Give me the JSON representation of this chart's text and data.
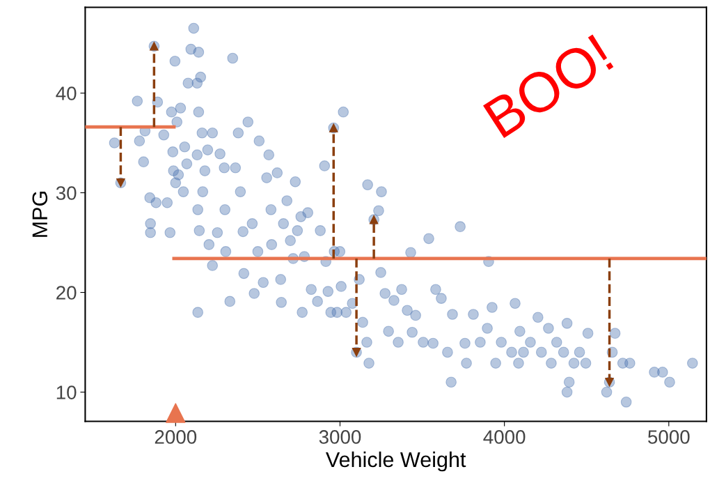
{
  "chart_data": {
    "type": "scatter",
    "xlabel": "Vehicle Weight",
    "ylabel": "MPG",
    "xlim": [
      1450,
      5229
    ],
    "ylim": [
      7.06,
      48.6
    ],
    "xticks": [
      2000,
      3000,
      4000,
      5000
    ],
    "yticks": [
      10,
      20,
      30,
      40
    ],
    "grid": false,
    "annotations": [
      "BOO!"
    ],
    "series": [
      {
        "marker": "circle",
        "color": "#4c72b0",
        "x": [
          1628,
          1666,
          1767,
          1780,
          1814,
          1805,
          1843,
          1847,
          1847,
          1869,
          1890,
          1881,
          1928,
          1949,
          1966,
          1975,
          1983,
          1987,
          1996,
          2000,
          2008,
          2017,
          2030,
          2047,
          2055,
          2076,
          2068,
          2093,
          2110,
          2131,
          2140,
          2152,
          2140,
          2131,
          2135,
          2144,
          2135,
          2161,
          2178,
          2165,
          2195,
          2203,
          2224,
          2224,
          2254,
          2270,
          2300,
          2296,
          2305,
          2330,
          2347,
          2364,
          2381,
          2394,
          2410,
          2415,
          2440,
          2466,
          2478,
          2500,
          2508,
          2533,
          2554,
          2567,
          2580,
          2584,
          2618,
          2639,
          2643,
          2656,
          2677,
          2698,
          2715,
          2728,
          2741,
          2762,
          2770,
          2783,
          2804,
          2825,
          2863,
          2880,
          2906,
          2914,
          2927,
          2944,
          2961,
          2965,
          2982,
          2999,
          3007,
          3020,
          3037,
          3075,
          3100,
          3117,
          3138,
          3168,
          3176,
          3163,
          3206,
          3235,
          3252,
          3248,
          3274,
          3295,
          3328,
          3354,
          3375,
          3409,
          3430,
          3439,
          3460,
          3506,
          3540,
          3566,
          3582,
          3616,
          3654,
          3676,
          3684,
          3731,
          3760,
          3769,
          3811,
          3853,
          3896,
          3904,
          3925,
          3947,
          3981,
          4044,
          4065,
          4086,
          4094,
          4116,
          4158,
          4204,
          4225,
          4268,
          4285,
          4318,
          4360,
          4381,
          4394,
          4381,
          4423,
          4457,
          4495,
          4508,
          4639,
          4622,
          4656,
          4673,
          4720,
          4741,
          4763,
          4912,
          4962,
          5005,
          5144
        ],
        "values": [
          35.0,
          31.0,
          39.2,
          35.2,
          36.2,
          33.1,
          29.5,
          26.9,
          26.0,
          44.7,
          39.1,
          29.0,
          35.8,
          29.0,
          26.0,
          38.1,
          34.1,
          32.2,
          43.2,
          31.0,
          37.1,
          31.8,
          38.5,
          30.1,
          34.6,
          41.0,
          32.9,
          44.4,
          46.5,
          41.0,
          44.1,
          41.6,
          38.1,
          33.8,
          28.3,
          26.2,
          18.0,
          36.0,
          32.2,
          30.1,
          34.3,
          24.8,
          36.0,
          22.7,
          26.0,
          33.9,
          28.3,
          32.5,
          24.1,
          19.1,
          43.5,
          32.5,
          36.0,
          30.1,
          26.1,
          21.9,
          37.1,
          26.9,
          19.9,
          24.1,
          35.2,
          21.0,
          31.5,
          33.8,
          28.3,
          24.8,
          32.0,
          21.3,
          19.0,
          26.9,
          29.2,
          25.2,
          23.4,
          31.1,
          26.2,
          27.6,
          18.0,
          23.6,
          28.0,
          20.3,
          19.1,
          26.2,
          32.7,
          23.1,
          20.1,
          18.0,
          36.5,
          24.1,
          18.0,
          24.1,
          20.6,
          38.1,
          18.0,
          18.9,
          14.0,
          21.3,
          17.0,
          30.8,
          12.9,
          15.0,
          27.3,
          28.2,
          30.1,
          22.0,
          19.9,
          16.1,
          19.2,
          15.0,
          20.3,
          18.2,
          24.0,
          16.0,
          17.7,
          15.0,
          25.4,
          14.9,
          20.3,
          19.4,
          14.0,
          11.0,
          17.8,
          26.6,
          14.9,
          12.9,
          17.8,
          15.0,
          16.4,
          23.1,
          18.5,
          12.9,
          15.0,
          14.0,
          18.9,
          12.9,
          16.1,
          14.0,
          15.0,
          17.5,
          14.0,
          16.4,
          12.9,
          15.0,
          14.0,
          16.9,
          11.0,
          10.0,
          12.9,
          14.0,
          12.9,
          15.9,
          11.0,
          10.0,
          14.0,
          15.9,
          12.9,
          9.0,
          12.9,
          12.0,
          12.0,
          11.0,
          12.9
        ]
      },
      {
        "type": "line",
        "color": "#e8744f",
        "line_style": "solid",
        "x": [
          1450,
          1990
        ],
        "values": [
          36.6,
          36.6
        ]
      },
      {
        "type": "line",
        "color": "#e8744f",
        "line_style": "solid",
        "x": [
          1990,
          5229
        ],
        "values": [
          23.4,
          23.4
        ]
      },
      {
        "type": "line",
        "color": "#8b3f0f",
        "line_style": "dashed",
        "marker": "triangle",
        "x": [
          1666,
          1666
        ],
        "values": [
          36.6,
          31.0
        ]
      },
      {
        "type": "line",
        "color": "#8b3f0f",
        "line_style": "dashed",
        "marker": "triangle",
        "x": [
          1869,
          1869
        ],
        "values": [
          36.6,
          44.7
        ]
      },
      {
        "type": "line",
        "color": "#8b3f0f",
        "line_style": "dashed",
        "marker": "triangle",
        "x": [
          2961,
          2961
        ],
        "values": [
          23.4,
          36.5
        ]
      },
      {
        "type": "line",
        "color": "#8b3f0f",
        "line_style": "dashed",
        "marker": "triangle",
        "x": [
          3100,
          3100
        ],
        "values": [
          23.4,
          14.0
        ]
      },
      {
        "type": "line",
        "color": "#8b3f0f",
        "line_style": "dashed",
        "marker": "triangle",
        "x": [
          3206,
          3206
        ],
        "values": [
          23.4,
          27.3
        ]
      },
      {
        "type": "line",
        "color": "#8b3f0f",
        "line_style": "dashed",
        "marker": "triangle",
        "x": [
          4639,
          4639
        ],
        "values": [
          23.4,
          11.0
        ]
      },
      {
        "marker": "triangle",
        "color": "#e8744f",
        "x": [
          2000
        ],
        "values": [
          7.9
        ]
      }
    ]
  }
}
